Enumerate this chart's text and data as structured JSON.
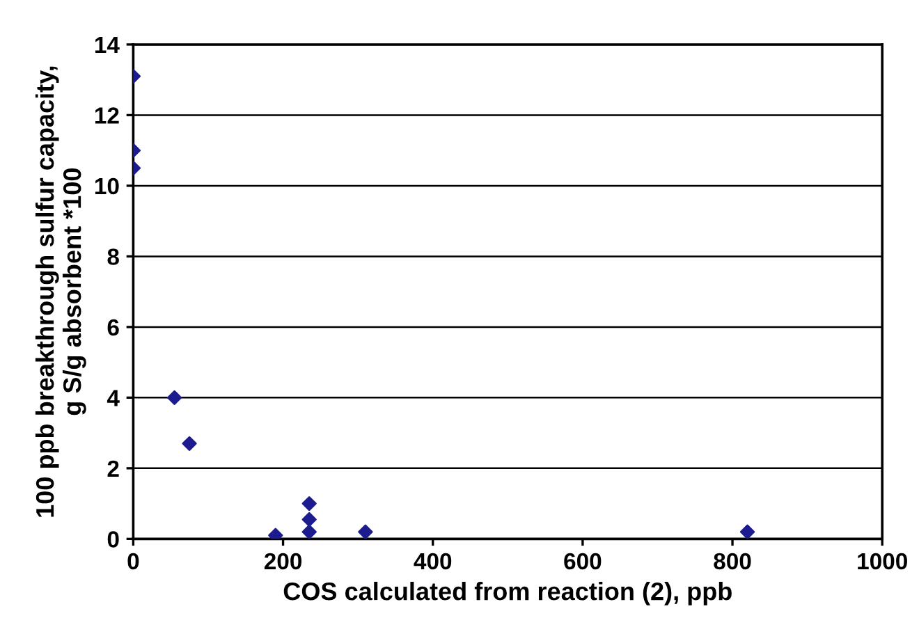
{
  "chart_data": {
    "type": "scatter",
    "xlabel": "COS calculated from reaction (2), ppb",
    "ylabel": "100 ppb breakthrough sulfur capacity,\ng S/g absorbent *100",
    "x": [
      0,
      0,
      0,
      55,
      75,
      190,
      235,
      235,
      235,
      310,
      820
    ],
    "series": [
      {
        "color": "#1c1c8e",
        "values": [
          13.1,
          11.0,
          10.5,
          4.0,
          2.7,
          0.1,
          1.0,
          0.55,
          0.2,
          0.2,
          0.2
        ]
      }
    ],
    "xlim": [
      0,
      1000
    ],
    "ylim": [
      0,
      14
    ],
    "xticks": [
      0,
      200,
      400,
      600,
      800,
      1000
    ],
    "yticks": [
      0,
      2,
      4,
      6,
      8,
      10,
      12,
      14
    ],
    "grid": "y",
    "marker": "diamond",
    "legend": false
  }
}
